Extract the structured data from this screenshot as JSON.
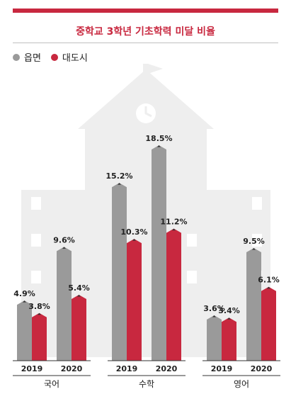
{
  "colors": {
    "accent": "#c8283f",
    "grey": "#9a9a9a",
    "background_building": "#eeeeee",
    "text": "#222222"
  },
  "title": "중학교 3학년 기초학력 미달 비율",
  "legend": [
    {
      "label": "읍면",
      "color": "#9a9a9a"
    },
    {
      "label": "대도시",
      "color": "#c8283f"
    }
  ],
  "chart_data": {
    "type": "bar",
    "title": "중학교 3학년 기초학력 미달 비율",
    "unit": "%",
    "groups": [
      {
        "subject": "국어",
        "years": [
          {
            "year": "2019",
            "values": [
              4.9,
              3.8
            ],
            "labels": [
              "4.9%",
              "3.8%"
            ]
          },
          {
            "year": "2020",
            "values": [
              9.6,
              5.4
            ],
            "labels": [
              "9.6%",
              "5.4%"
            ]
          }
        ]
      },
      {
        "subject": "수학",
        "years": [
          {
            "year": "2019",
            "values": [
              15.2,
              10.3
            ],
            "labels": [
              "15.2%",
              "10.3%"
            ]
          },
          {
            "year": "2020",
            "values": [
              18.5,
              11.2
            ],
            "labels": [
              "18.5%",
              "11.2%"
            ]
          }
        ]
      },
      {
        "subject": "영어",
        "years": [
          {
            "year": "2019",
            "values": [
              3.6,
              3.4
            ],
            "labels": [
              "3.6%",
              "3.4%"
            ]
          },
          {
            "year": "2020",
            "values": [
              9.5,
              6.1
            ],
            "labels": [
              "9.5%",
              "6.1%"
            ]
          }
        ]
      }
    ],
    "series": [
      {
        "name": "읍면"
      },
      {
        "name": "대도시"
      }
    ],
    "ylim": [
      0,
      18.5
    ],
    "grid": false,
    "legend_position": "top-left"
  }
}
